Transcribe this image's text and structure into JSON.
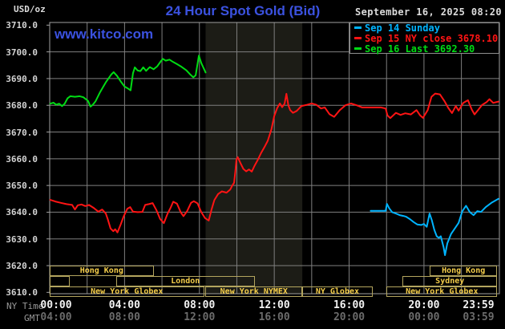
{
  "header": {
    "title": "24 Hour Spot Gold (Bid)",
    "unit_label": "USD/oz",
    "datetime": "September 16, 2025 08:20",
    "watermark": "www.kitco.com"
  },
  "colors": {
    "title_blue": "#3b52e0",
    "background": "#000000",
    "grid": "#7f7f7f",
    "plot_border": "#9f9f9f",
    "nymex_band": "#1c1c16",
    "session_border": "#b3a55e",
    "session_text": "#f5ce4a",
    "sep14_cyan": "#00b4ff",
    "sep15_red": "#ff1414",
    "sep16_green": "#00dc14"
  },
  "legend": [
    {
      "label": "Sep 14 Sunday",
      "color": "#00b4ff"
    },
    {
      "label": "Sep 15 NY close 3678.10",
      "color": "#ff1414"
    },
    {
      "label": "Sep 16 Last 3692.30",
      "color": "#00dc14"
    }
  ],
  "axes": {
    "ny_time_label": "NY Time",
    "gmt_label": "GMT",
    "y_ticks": [
      "3710.0",
      "3700.0",
      "3690.0",
      "3680.0",
      "3670.0",
      "3660.0",
      "3650.0",
      "3640.0",
      "3630.0",
      "3620.0",
      "3610.0"
    ],
    "ny_ticks": [
      {
        "label": "00:00",
        "hour": 0
      },
      {
        "label": "04:00",
        "hour": 4
      },
      {
        "label": "08:00",
        "hour": 8
      },
      {
        "label": "12:00",
        "hour": 12
      },
      {
        "label": "16:00",
        "hour": 16
      },
      {
        "label": "20:00",
        "hour": 20
      },
      {
        "label": "23:59",
        "hour": 23.983
      }
    ],
    "gmt_ticks": [
      {
        "label": "04:00",
        "hour": 0
      },
      {
        "label": "08:00",
        "hour": 4
      },
      {
        "label": "12:00",
        "hour": 8
      },
      {
        "label": "16:00",
        "hour": 12
      },
      {
        "label": "20:00",
        "hour": 16
      },
      {
        "label": "00:00",
        "hour": 20
      },
      {
        "label": "03:59",
        "hour": 23.983
      }
    ]
  },
  "sessions": [
    {
      "row": 1,
      "from_hour": 0.0,
      "to_hour": 5.55,
      "label": "Hong Kong"
    },
    {
      "row": 1,
      "from_hour": 20.3,
      "to_hour": 23.92,
      "label": "Hong Kong"
    },
    {
      "row": 2,
      "from_hour": 0.0,
      "to_hour": 1.05,
      "label": ""
    },
    {
      "row": 2,
      "from_hour": 3.55,
      "to_hour": 10.95,
      "label": "London"
    },
    {
      "row": 2,
      "from_hour": 18.85,
      "to_hour": 23.92,
      "label": "Sydney"
    },
    {
      "row": 3,
      "from_hour": 0.0,
      "to_hour": 8.25,
      "label": "New York Globex"
    },
    {
      "row": 3,
      "from_hour": 8.33,
      "to_hour": 13.5,
      "label": "New York NYMEX"
    },
    {
      "row": 3,
      "from_hour": 13.5,
      "to_hour": 17.25,
      "label": "NY Globex"
    },
    {
      "row": 3,
      "from_hour": 18.0,
      "to_hour": 23.92,
      "label": "New York Globex"
    }
  ],
  "chart_data": {
    "type": "line",
    "title": "24 Hour Spot Gold (Bid)",
    "xlabel": "NY Time (hours)",
    "ylabel": "USD/oz",
    "xlim": [
      0,
      24.03
    ],
    "ylim": [
      3609.5,
      3711.0
    ],
    "grid": {
      "x_step_hours": 2,
      "y_step": 10,
      "y_from": 3620,
      "y_to": 3700
    },
    "band": {
      "name": "New York NYMEX session",
      "from_hour": 8.33,
      "to_hour": 13.5,
      "color": "#1c1c16"
    },
    "series": [
      {
        "name": "Sep 14 Sunday",
        "color": "#00b4ff",
        "points": [
          [
            17.15,
            3640.5
          ],
          [
            17.95,
            3640.5
          ],
          [
            18.02,
            3643.1
          ],
          [
            18.15,
            3641.4
          ],
          [
            18.3,
            3640.0
          ],
          [
            18.5,
            3639.5
          ],
          [
            18.7,
            3638.9
          ],
          [
            18.9,
            3638.6
          ],
          [
            19.05,
            3638.3
          ],
          [
            19.25,
            3637.4
          ],
          [
            19.45,
            3636.3
          ],
          [
            19.65,
            3635.4
          ],
          [
            19.85,
            3635.2
          ],
          [
            20.0,
            3635.6
          ],
          [
            20.15,
            3634.5
          ],
          [
            20.3,
            3639.5
          ],
          [
            20.42,
            3637.0
          ],
          [
            20.55,
            3633.4
          ],
          [
            20.68,
            3631.0
          ],
          [
            20.8,
            3630.4
          ],
          [
            20.9,
            3631.0
          ],
          [
            21.05,
            3626.9
          ],
          [
            21.12,
            3623.9
          ],
          [
            21.25,
            3628.4
          ],
          [
            21.45,
            3631.9
          ],
          [
            21.65,
            3633.9
          ],
          [
            21.85,
            3636.0
          ],
          [
            22.05,
            3640.4
          ],
          [
            22.25,
            3642.4
          ],
          [
            22.45,
            3640.0
          ],
          [
            22.65,
            3638.9
          ],
          [
            22.85,
            3640.4
          ],
          [
            23.05,
            3640.1
          ],
          [
            23.3,
            3641.9
          ],
          [
            23.6,
            3643.5
          ],
          [
            23.98,
            3645.0
          ]
        ]
      },
      {
        "name": "Sep 15",
        "color": "#ff1414",
        "points": [
          [
            0.03,
            3644.6
          ],
          [
            0.3,
            3644.0
          ],
          [
            0.6,
            3643.5
          ],
          [
            0.9,
            3643.0
          ],
          [
            1.2,
            3642.7
          ],
          [
            1.35,
            3641.0
          ],
          [
            1.5,
            3642.6
          ],
          [
            1.7,
            3642.9
          ],
          [
            1.9,
            3642.3
          ],
          [
            2.1,
            3642.7
          ],
          [
            2.35,
            3641.6
          ],
          [
            2.6,
            3640.2
          ],
          [
            2.8,
            3641.0
          ],
          [
            3.0,
            3639.5
          ],
          [
            3.1,
            3637.4
          ],
          [
            3.25,
            3633.9
          ],
          [
            3.4,
            3632.9
          ],
          [
            3.5,
            3633.6
          ],
          [
            3.62,
            3632.4
          ],
          [
            3.8,
            3635.5
          ],
          [
            3.95,
            3638.4
          ],
          [
            4.15,
            3641.3
          ],
          [
            4.3,
            3641.9
          ],
          [
            4.45,
            3640.2
          ],
          [
            4.7,
            3640.0
          ],
          [
            4.95,
            3640.1
          ],
          [
            5.1,
            3642.7
          ],
          [
            5.3,
            3643.0
          ],
          [
            5.5,
            3643.4
          ],
          [
            5.7,
            3640.8
          ],
          [
            5.9,
            3637.5
          ],
          [
            6.1,
            3635.9
          ],
          [
            6.3,
            3639.5
          ],
          [
            6.45,
            3641.5
          ],
          [
            6.6,
            3643.9
          ],
          [
            6.8,
            3643.2
          ],
          [
            7.0,
            3640.0
          ],
          [
            7.15,
            3638.5
          ],
          [
            7.35,
            3640.5
          ],
          [
            7.55,
            3643.5
          ],
          [
            7.7,
            3644.1
          ],
          [
            7.9,
            3643.3
          ],
          [
            8.1,
            3640.0
          ],
          [
            8.3,
            3637.8
          ],
          [
            8.5,
            3636.9
          ],
          [
            8.65,
            3641.0
          ],
          [
            8.8,
            3644.5
          ],
          [
            9.0,
            3646.8
          ],
          [
            9.2,
            3647.8
          ],
          [
            9.45,
            3647.3
          ],
          [
            9.65,
            3648.5
          ],
          [
            9.75,
            3649.9
          ],
          [
            9.85,
            3651.0
          ],
          [
            9.92,
            3655.3
          ],
          [
            9.98,
            3659.7
          ],
          [
            10.05,
            3660.6
          ],
          [
            10.2,
            3658.3
          ],
          [
            10.35,
            3656.2
          ],
          [
            10.5,
            3655.3
          ],
          [
            10.65,
            3656.0
          ],
          [
            10.8,
            3655.2
          ],
          [
            10.95,
            3657.4
          ],
          [
            11.1,
            3659.3
          ],
          [
            11.3,
            3662.2
          ],
          [
            11.5,
            3664.7
          ],
          [
            11.65,
            3666.7
          ],
          [
            11.85,
            3671.0
          ],
          [
            12.0,
            3676.0
          ],
          [
            12.15,
            3678.9
          ],
          [
            12.3,
            3680.7
          ],
          [
            12.42,
            3679.3
          ],
          [
            12.55,
            3680.6
          ],
          [
            12.65,
            3684.3
          ],
          [
            12.75,
            3680.0
          ],
          [
            12.85,
            3678.2
          ],
          [
            13.0,
            3677.2
          ],
          [
            13.2,
            3677.9
          ],
          [
            13.45,
            3679.7
          ],
          [
            13.7,
            3680.1
          ],
          [
            14.0,
            3680.7
          ],
          [
            14.25,
            3680.2
          ],
          [
            14.5,
            3678.8
          ],
          [
            14.7,
            3679.2
          ],
          [
            14.95,
            3676.7
          ],
          [
            15.2,
            3675.7
          ],
          [
            15.5,
            3678.2
          ],
          [
            15.8,
            3680.0
          ],
          [
            16.1,
            3680.7
          ],
          [
            16.4,
            3680.0
          ],
          [
            16.7,
            3679.2
          ],
          [
            17.2,
            3679.2
          ],
          [
            17.7,
            3679.2
          ],
          [
            17.95,
            3678.8
          ],
          [
            18.05,
            3676.2
          ],
          [
            18.2,
            3675.2
          ],
          [
            18.5,
            3677.2
          ],
          [
            18.75,
            3676.4
          ],
          [
            19.0,
            3677.0
          ],
          [
            19.3,
            3676.6
          ],
          [
            19.6,
            3678.2
          ],
          [
            19.8,
            3676.2
          ],
          [
            19.95,
            3675.3
          ],
          [
            20.2,
            3678.2
          ],
          [
            20.4,
            3683.2
          ],
          [
            20.6,
            3684.4
          ],
          [
            20.85,
            3684.1
          ],
          [
            21.1,
            3681.5
          ],
          [
            21.3,
            3679.0
          ],
          [
            21.5,
            3677.1
          ],
          [
            21.7,
            3679.7
          ],
          [
            21.85,
            3678.0
          ],
          [
            22.1,
            3680.9
          ],
          [
            22.35,
            3681.9
          ],
          [
            22.55,
            3678.5
          ],
          [
            22.7,
            3676.6
          ],
          [
            22.9,
            3678.3
          ],
          [
            23.1,
            3680.1
          ],
          [
            23.35,
            3681.2
          ],
          [
            23.5,
            3682.3
          ],
          [
            23.7,
            3680.9
          ],
          [
            23.98,
            3681.4
          ]
        ]
      },
      {
        "name": "Sep 16",
        "color": "#00dc14",
        "points": [
          [
            0.03,
            3680.6
          ],
          [
            0.2,
            3681.0
          ],
          [
            0.35,
            3680.2
          ],
          [
            0.5,
            3680.6
          ],
          [
            0.66,
            3679.7
          ],
          [
            0.8,
            3680.6
          ],
          [
            0.95,
            3682.6
          ],
          [
            1.1,
            3683.4
          ],
          [
            1.35,
            3683.2
          ],
          [
            1.6,
            3683.4
          ],
          [
            1.8,
            3683.0
          ],
          [
            1.95,
            3682.2
          ],
          [
            2.05,
            3681.6
          ],
          [
            2.18,
            3679.5
          ],
          [
            2.3,
            3680.2
          ],
          [
            2.45,
            3681.5
          ],
          [
            2.7,
            3685.0
          ],
          [
            3.0,
            3688.6
          ],
          [
            3.3,
            3691.6
          ],
          [
            3.42,
            3692.4
          ],
          [
            3.6,
            3691.0
          ],
          [
            3.8,
            3688.9
          ],
          [
            4.0,
            3687.0
          ],
          [
            4.18,
            3686.3
          ],
          [
            4.32,
            3685.6
          ],
          [
            4.45,
            3692.0
          ],
          [
            4.55,
            3694.2
          ],
          [
            4.7,
            3693.0
          ],
          [
            4.85,
            3692.8
          ],
          [
            5.0,
            3694.2
          ],
          [
            5.15,
            3692.9
          ],
          [
            5.35,
            3694.3
          ],
          [
            5.55,
            3693.5
          ],
          [
            5.75,
            3694.6
          ],
          [
            5.95,
            3696.6
          ],
          [
            6.05,
            3697.4
          ],
          [
            6.2,
            3696.7
          ],
          [
            6.4,
            3697.1
          ],
          [
            6.6,
            3696.2
          ],
          [
            6.8,
            3695.4
          ],
          [
            7.0,
            3694.6
          ],
          [
            7.3,
            3693.1
          ],
          [
            7.5,
            3691.6
          ],
          [
            7.67,
            3690.5
          ],
          [
            7.8,
            3691.2
          ],
          [
            7.97,
            3698.6
          ],
          [
            8.1,
            3695.8
          ],
          [
            8.2,
            3694.3
          ],
          [
            8.33,
            3692.3
          ]
        ]
      }
    ]
  }
}
